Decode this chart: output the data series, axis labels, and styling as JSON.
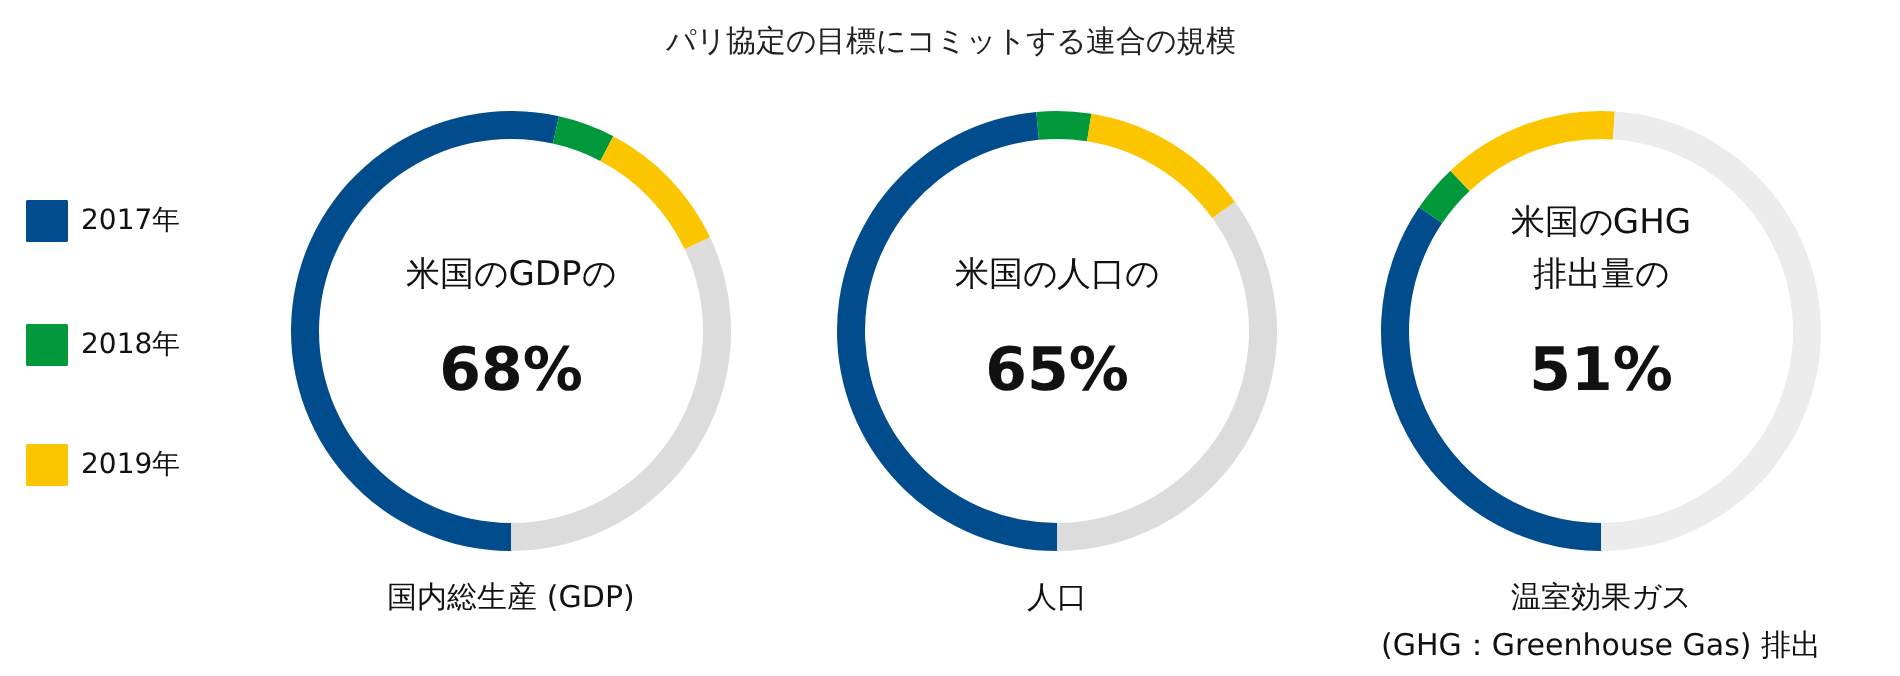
{
  "chart_data": [
    {
      "type": "donut",
      "categories": [
        "2017年",
        "2018年",
        "2019年",
        null
      ],
      "values": [
        53.5,
        4.2,
        10.3,
        32
      ],
      "colors": [
        "#004c8c",
        "#00983a",
        "#fbc600",
        "#dcdcdc"
      ],
      "annotations": [
        "米国のGDPの",
        "68%"
      ],
      "xlabel": "国内総生産 (GDP)",
      "legend": "left"
    },
    {
      "type": "donut",
      "title": "パリ協定の目標にコミットする連合の規模",
      "categories": [
        null,
        null,
        null,
        null
      ],
      "values": [
        48.5,
        4,
        12.5,
        35
      ],
      "colors": [
        "#004c8c",
        "#00983a",
        "#fbc600",
        "#dcdcdc"
      ],
      "annotations": [
        "米国の人口の",
        "65%"
      ],
      "xlabel": "人口"
    },
    {
      "type": "donut",
      "categories": [
        null,
        null,
        null,
        null
      ],
      "values": [
        34.5,
        3.5,
        13,
        49
      ],
      "colors": [
        "#004c8c",
        "#00983a",
        "#fbc600",
        "#ececec"
      ],
      "annotations": [
        "米国のGHG",
        "排出量の",
        "51%"
      ],
      "xlabel": "温室効果ガス\n(GHG：Greenhouse Gas) 排出"
    }
  ]
}
